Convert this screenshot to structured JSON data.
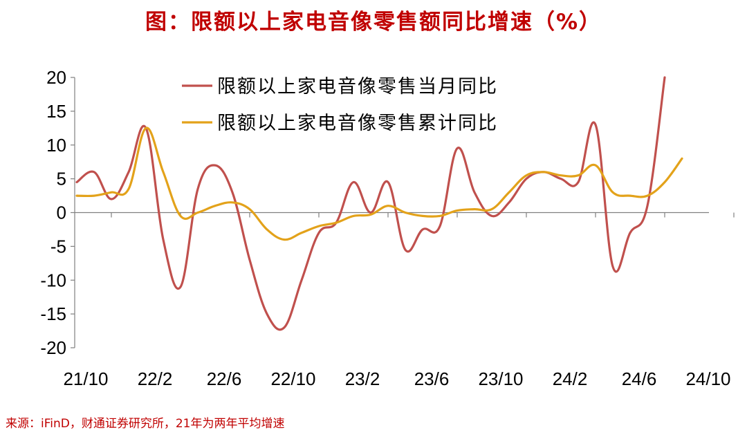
{
  "title": "图：限额以上家电音像零售额同比增速（%）",
  "source": "来源：iFinD，财通证券研究所，21年为两年平均增速",
  "colors": {
    "monthly": "#c0504d",
    "cumulative": "#e3a21a",
    "title": "#c00000"
  },
  "chart_data": {
    "type": "line",
    "x": [
      "21/10",
      "21/11",
      "21/12",
      "22/1",
      "22/2",
      "22/3",
      "22/4",
      "22/5",
      "22/6",
      "22/7",
      "22/8",
      "22/9",
      "22/10",
      "22/11",
      "22/12",
      "23/1",
      "23/2",
      "23/3",
      "23/4",
      "23/5",
      "23/6",
      "23/7",
      "23/8",
      "23/9",
      "23/10",
      "23/11",
      "23/12",
      "24/1",
      "24/2",
      "24/3",
      "24/4",
      "24/5",
      "24/6",
      "24/7",
      "24/8",
      "24/9",
      "24/10"
    ],
    "xtick_labels": [
      "21/10",
      "22/2",
      "22/6",
      "22/10",
      "23/2",
      "23/6",
      "23/10",
      "24/2",
      "24/6",
      "24/10"
    ],
    "ylim": [
      -20,
      20
    ],
    "yticks": [
      20,
      15,
      10,
      5,
      0,
      -5,
      -10,
      -15,
      -20
    ],
    "series": [
      {
        "name": "限额以上家电音像零售当月同比",
        "color": "#c0504d",
        "values": [
          4.5,
          6.0,
          2.0,
          6.0,
          12.5,
          -4.0,
          -11.0,
          3.5,
          7.0,
          3.0,
          -7.0,
          -15.0,
          -17.0,
          -10.0,
          -3.0,
          -1.5,
          4.5,
          0.0,
          4.5,
          -5.5,
          -2.5,
          -2.0,
          9.5,
          3.0,
          -0.5,
          1.5,
          5.0,
          6.0,
          5.0,
          4.5,
          13.0,
          -8.0,
          -3.0,
          1.0,
          20.0,
          null,
          null
        ]
      },
      {
        "name": "限额以上家电音像零售累计同比",
        "color": "#e3a21a",
        "values": [
          2.5,
          2.5,
          3.0,
          3.5,
          12.5,
          6.0,
          -0.5,
          0.0,
          1.0,
          1.5,
          0.5,
          -2.5,
          -4.0,
          -3.0,
          -2.0,
          -1.5,
          -0.5,
          -0.3,
          1.0,
          0.0,
          -0.5,
          -0.5,
          0.3,
          0.5,
          0.5,
          3.0,
          5.5,
          6.0,
          5.5,
          5.5,
          7.0,
          3.0,
          2.5,
          2.5,
          4.5,
          8.0,
          null
        ]
      }
    ],
    "legend": "top-right"
  }
}
